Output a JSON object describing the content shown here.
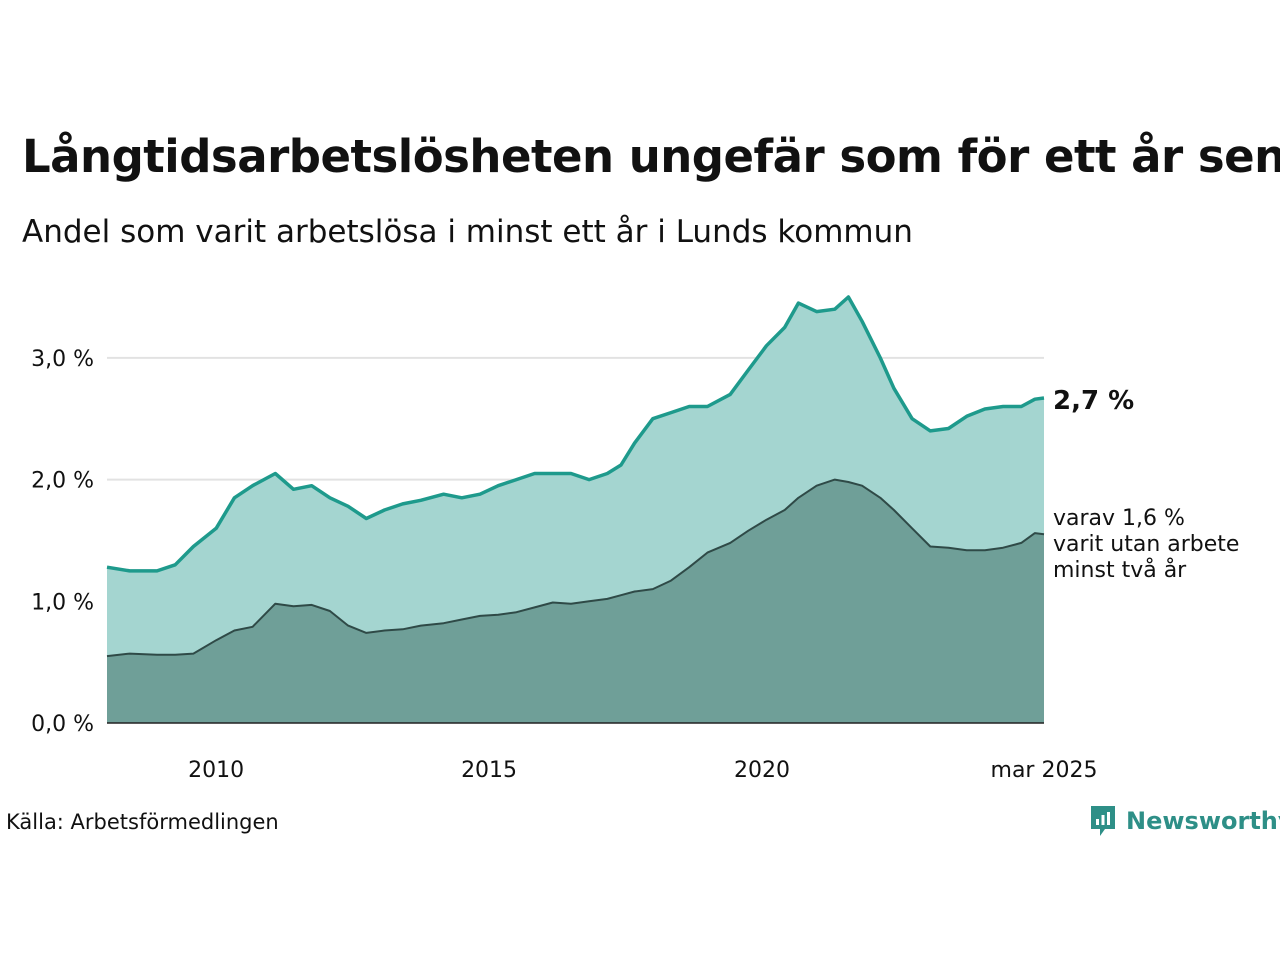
{
  "title": "Långtidsarbetslösheten ungefär som för ett år sen",
  "subtitle": "Andel som varit arbetslösa i minst ett år i Lunds kommun",
  "source": "Källa: Arbetsförmedlingen",
  "brand": "Newsworthy",
  "colors": {
    "area1": "#a4d5d0",
    "line1": "#1e9a8c",
    "area2": "#6f9f98",
    "line2": "#2f4a47",
    "grid": "#e2e2e2"
  },
  "labels": {
    "end1": "2,7 %",
    "end2": [
      "varav 1,6 %",
      "varit utan arbete",
      "minst två år"
    ]
  },
  "chart_data": {
    "type": "area",
    "ylim": [
      0,
      3.5
    ],
    "yticks": [
      "0,0 %",
      "1,0 %",
      "2,0 %",
      "3,0 %"
    ],
    "xticks": [
      "2010",
      "2015",
      "2020",
      "mar 2025"
    ],
    "xrange": [
      "2008-01",
      "2025-03"
    ],
    "series": [
      {
        "name": "minst ett år",
        "points": [
          [
            "2008-01",
            1.28
          ],
          [
            "2008-06",
            1.25
          ],
          [
            "2008-12",
            1.25
          ],
          [
            "2009-04",
            1.3
          ],
          [
            "2009-08",
            1.45
          ],
          [
            "2010-01",
            1.6
          ],
          [
            "2010-05",
            1.85
          ],
          [
            "2010-09",
            1.95
          ],
          [
            "2011-02",
            2.05
          ],
          [
            "2011-06",
            1.92
          ],
          [
            "2011-10",
            1.95
          ],
          [
            "2012-02",
            1.85
          ],
          [
            "2012-06",
            1.78
          ],
          [
            "2012-10",
            1.68
          ],
          [
            "2013-02",
            1.75
          ],
          [
            "2013-06",
            1.8
          ],
          [
            "2013-10",
            1.83
          ],
          [
            "2014-03",
            1.88
          ],
          [
            "2014-07",
            1.85
          ],
          [
            "2014-11",
            1.88
          ],
          [
            "2015-03",
            1.95
          ],
          [
            "2015-07",
            2.0
          ],
          [
            "2015-11",
            2.05
          ],
          [
            "2016-03",
            2.05
          ],
          [
            "2016-07",
            2.05
          ],
          [
            "2016-11",
            2.0
          ],
          [
            "2017-03",
            2.05
          ],
          [
            "2017-06",
            2.12
          ],
          [
            "2017-09",
            2.3
          ],
          [
            "2018-01",
            2.5
          ],
          [
            "2018-05",
            2.55
          ],
          [
            "2018-09",
            2.6
          ],
          [
            "2019-01",
            2.6
          ],
          [
            "2019-06",
            2.7
          ],
          [
            "2019-10",
            2.9
          ],
          [
            "2020-02",
            3.1
          ],
          [
            "2020-06",
            3.25
          ],
          [
            "2020-09",
            3.45
          ],
          [
            "2021-01",
            3.38
          ],
          [
            "2021-05",
            3.4
          ],
          [
            "2021-08",
            3.5
          ],
          [
            "2021-11",
            3.3
          ],
          [
            "2022-03",
            3.0
          ],
          [
            "2022-06",
            2.75
          ],
          [
            "2022-10",
            2.5
          ],
          [
            "2023-02",
            2.4
          ],
          [
            "2023-06",
            2.42
          ],
          [
            "2023-10",
            2.52
          ],
          [
            "2024-02",
            2.58
          ],
          [
            "2024-06",
            2.6
          ],
          [
            "2024-10",
            2.6
          ],
          [
            "2025-01",
            2.66
          ],
          [
            "2025-03",
            2.67
          ]
        ]
      },
      {
        "name": "varav minst två år",
        "points": [
          [
            "2008-01",
            0.55
          ],
          [
            "2008-06",
            0.57
          ],
          [
            "2008-12",
            0.56
          ],
          [
            "2009-04",
            0.56
          ],
          [
            "2009-08",
            0.57
          ],
          [
            "2010-01",
            0.68
          ],
          [
            "2010-05",
            0.76
          ],
          [
            "2010-09",
            0.79
          ],
          [
            "2011-02",
            0.98
          ],
          [
            "2011-06",
            0.96
          ],
          [
            "2011-10",
            0.97
          ],
          [
            "2012-02",
            0.92
          ],
          [
            "2012-06",
            0.8
          ],
          [
            "2012-10",
            0.74
          ],
          [
            "2013-02",
            0.76
          ],
          [
            "2013-06",
            0.77
          ],
          [
            "2013-10",
            0.8
          ],
          [
            "2014-03",
            0.82
          ],
          [
            "2014-07",
            0.85
          ],
          [
            "2014-11",
            0.88
          ],
          [
            "2015-03",
            0.89
          ],
          [
            "2015-07",
            0.91
          ],
          [
            "2015-11",
            0.95
          ],
          [
            "2016-03",
            0.99
          ],
          [
            "2016-07",
            0.98
          ],
          [
            "2016-11",
            1.0
          ],
          [
            "2017-03",
            1.02
          ],
          [
            "2017-06",
            1.05
          ],
          [
            "2017-09",
            1.08
          ],
          [
            "2018-01",
            1.1
          ],
          [
            "2018-05",
            1.17
          ],
          [
            "2018-09",
            1.28
          ],
          [
            "2019-01",
            1.4
          ],
          [
            "2019-06",
            1.48
          ],
          [
            "2019-10",
            1.58
          ],
          [
            "2020-02",
            1.67
          ],
          [
            "2020-06",
            1.75
          ],
          [
            "2020-09",
            1.85
          ],
          [
            "2021-01",
            1.95
          ],
          [
            "2021-05",
            2.0
          ],
          [
            "2021-08",
            1.98
          ],
          [
            "2021-11",
            1.95
          ],
          [
            "2022-03",
            1.85
          ],
          [
            "2022-06",
            1.75
          ],
          [
            "2022-10",
            1.6
          ],
          [
            "2023-02",
            1.45
          ],
          [
            "2023-06",
            1.44
          ],
          [
            "2023-10",
            1.42
          ],
          [
            "2024-02",
            1.42
          ],
          [
            "2024-06",
            1.44
          ],
          [
            "2024-10",
            1.48
          ],
          [
            "2025-01",
            1.56
          ],
          [
            "2025-03",
            1.55
          ]
        ]
      }
    ]
  }
}
